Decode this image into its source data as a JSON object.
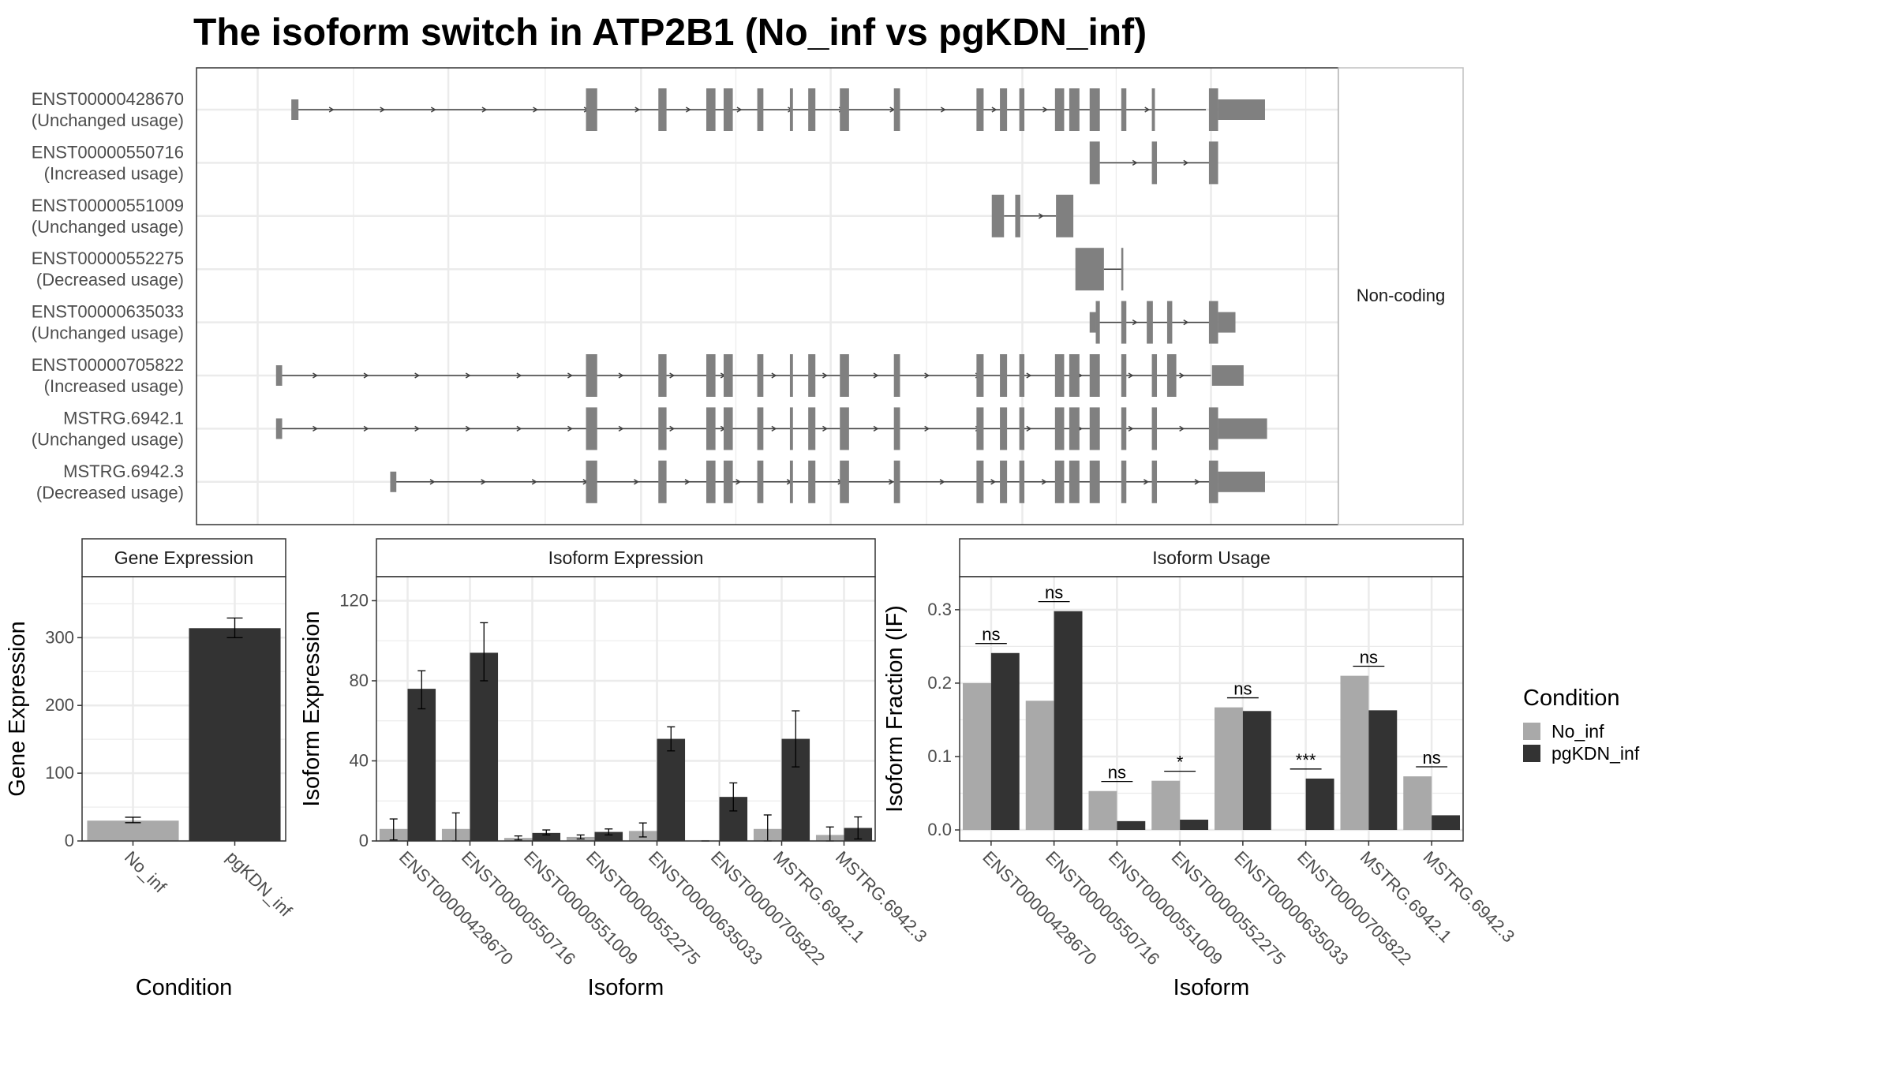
{
  "title": "The isoform switch in ATP2B1 (No_inf vs pgKDN_inf)",
  "colors": {
    "no_inf": "#a9a9a9",
    "pgkdn_inf": "#333333",
    "exon": "#808080",
    "intron": "#404040",
    "grid": "#ebebeb",
    "frame": "#333333"
  },
  "legend": {
    "title": "Condition",
    "items": [
      "No_inf",
      "pgKDN_inf"
    ]
  },
  "chart_data": [
    {
      "type": "table",
      "panel": "transcript-structure",
      "facet_label": "Non-coding",
      "strand": "+",
      "isoforms": [
        {
          "id": "ENST00000428670",
          "status": "(Unchanged usage)",
          "intron_span": [
            96,
            990
          ],
          "start_utr": [
            93,
            100
          ],
          "exons": [
            [
              382,
              393
            ],
            [
              453,
              461
            ],
            [
              500,
              509
            ],
            [
              517,
              526
            ],
            [
              550,
              556
            ],
            [
              582,
              585
            ],
            [
              600,
              607
            ],
            [
              631,
              640
            ],
            [
              684,
              690
            ],
            [
              765,
              772
            ],
            [
              788,
              795
            ],
            [
              807,
              812
            ],
            [
              842,
              851
            ],
            [
              856,
              866
            ],
            [
              876,
              886
            ],
            [
              907,
              912
            ],
            [
              937,
              940
            ],
            [
              993,
              1002
            ]
          ],
          "end_utr": [
            1002,
            1048
          ]
        },
        {
          "id": "ENST00000550716",
          "status": "(Increased usage)",
          "intron_span": [
            884,
            996
          ],
          "start_utr": [
            878,
            884
          ],
          "exons": [
            [
              876,
              886
            ],
            [
              937,
              942
            ],
            [
              993,
              1002
            ]
          ],
          "end_utr": null
        },
        {
          "id": "ENST00000551009",
          "status": "(Unchanged usage)",
          "intron_span": [
            792,
            843
          ],
          "start_utr": null,
          "exons": [
            [
              780,
              792
            ],
            [
              803,
              808
            ],
            [
              843,
              860
            ]
          ],
          "end_utr": null
        },
        {
          "id": "ENST00000552275",
          "status": "(Decreased usage)",
          "intron_span": [
            890,
            909
          ],
          "start_utr": null,
          "exons": [
            [
              862,
              890
            ],
            [
              907,
              909
            ]
          ],
          "end_utr": null
        },
        {
          "id": "ENST00000635033",
          "status": "(Unchanged usage)",
          "intron_span": [
            884,
            996
          ],
          "start_utr": [
            876,
            882
          ],
          "exons": [
            [
              882,
              886
            ],
            [
              907,
              912
            ],
            [
              932,
              938
            ],
            [
              952,
              957
            ],
            [
              993,
              1002
            ]
          ],
          "end_utr": [
            1002,
            1019
          ]
        },
        {
          "id": "ENST00000705822",
          "status": "(Increased usage)",
          "intron_span": [
            80,
            995
          ],
          "start_utr": [
            78,
            84
          ],
          "exons": [
            [
              382,
              393
            ],
            [
              453,
              461
            ],
            [
              500,
              509
            ],
            [
              517,
              526
            ],
            [
              550,
              556
            ],
            [
              582,
              585
            ],
            [
              600,
              607
            ],
            [
              631,
              640
            ],
            [
              684,
              690
            ],
            [
              765,
              772
            ],
            [
              788,
              795
            ],
            [
              807,
              812
            ],
            [
              842,
              851
            ],
            [
              856,
              866
            ],
            [
              876,
              886
            ],
            [
              907,
              912
            ],
            [
              937,
              942
            ],
            [
              952,
              961
            ]
          ],
          "end_utr": [
            996,
            1027
          ]
        },
        {
          "id": "MSTRG.6942.1",
          "status": "(Unchanged usage)",
          "intron_span": [
            80,
            995
          ],
          "start_utr": [
            78,
            84
          ],
          "exons": [
            [
              382,
              393
            ],
            [
              453,
              461
            ],
            [
              500,
              509
            ],
            [
              517,
              526
            ],
            [
              550,
              556
            ],
            [
              582,
              585
            ],
            [
              600,
              607
            ],
            [
              631,
              640
            ],
            [
              684,
              690
            ],
            [
              765,
              772
            ],
            [
              788,
              795
            ],
            [
              807,
              812
            ],
            [
              842,
              851
            ],
            [
              856,
              866
            ],
            [
              876,
              886
            ],
            [
              907,
              912
            ],
            [
              937,
              942
            ],
            [
              993,
              1002
            ]
          ],
          "end_utr": [
            1002,
            1050
          ]
        },
        {
          "id": "MSTRG.6942.3",
          "status": "(Decreased usage)",
          "intron_span": [
            195,
            995
          ],
          "start_utr": [
            190,
            196
          ],
          "exons": [
            [
              382,
              393
            ],
            [
              453,
              461
            ],
            [
              500,
              509
            ],
            [
              517,
              526
            ],
            [
              550,
              556
            ],
            [
              582,
              585
            ],
            [
              600,
              607
            ],
            [
              631,
              640
            ],
            [
              684,
              690
            ],
            [
              765,
              772
            ],
            [
              788,
              795
            ],
            [
              807,
              812
            ],
            [
              842,
              851
            ],
            [
              856,
              866
            ],
            [
              876,
              886
            ],
            [
              907,
              912
            ],
            [
              937,
              942
            ],
            [
              993,
              1002
            ]
          ],
          "end_utr": [
            1002,
            1048
          ]
        }
      ]
    },
    {
      "type": "bar",
      "panel": "gene-expression",
      "strip": "Gene Expression",
      "xlabel": "Condition",
      "ylabel": "Gene Expression",
      "ylim": [
        0,
        390
      ],
      "yticks": [
        0,
        100,
        200,
        300
      ],
      "categories": [
        "No_inf",
        "pgKDN_inf"
      ],
      "values": [
        30,
        314
      ],
      "err_low": [
        27,
        300
      ],
      "err_high": [
        35,
        329
      ]
    },
    {
      "type": "bar",
      "panel": "isoform-expression",
      "strip": "Isoform Expression",
      "xlabel": "Isoform",
      "ylabel": "Isoform Expression",
      "ylim": [
        0,
        132
      ],
      "yticks": [
        0,
        40,
        80,
        120
      ],
      "categories": [
        "ENST00000428670",
        "ENST00000550716",
        "ENST00000551009",
        "ENST00000552275",
        "ENST00000635033",
        "ENST00000705822",
        "MSTRG.6942.1",
        "MSTRG.6942.3"
      ],
      "series": [
        {
          "name": "No_inf",
          "values": [
            6,
            6,
            1.5,
            2,
            5,
            0,
            6,
            3
          ],
          "err_low": [
            0.5,
            0,
            0.5,
            1,
            2,
            0,
            0,
            0
          ],
          "err_high": [
            11,
            14,
            2.5,
            3,
            9,
            0,
            13,
            7
          ]
        },
        {
          "name": "pgKDN_inf",
          "values": [
            76,
            94,
            4,
            4.5,
            51,
            22,
            51,
            6.5
          ],
          "err_low": [
            66,
            80,
            3,
            3,
            45,
            15,
            37,
            1
          ],
          "err_high": [
            85,
            109,
            5.5,
            6,
            57,
            29,
            65,
            12
          ]
        }
      ]
    },
    {
      "type": "bar",
      "panel": "isoform-usage",
      "strip": "Isoform Usage",
      "xlabel": "Isoform",
      "ylabel": "Isoform Fraction (IF)",
      "ylim": [
        -0.015,
        0.345
      ],
      "yticks": [
        0.0,
        0.1,
        0.2,
        0.3
      ],
      "ytick_labels": [
        "0.0",
        "0.1",
        "0.2",
        "0.3"
      ],
      "categories": [
        "ENST00000428670",
        "ENST00000550716",
        "ENST00000551009",
        "ENST00000552275",
        "ENST00000635033",
        "ENST00000705822",
        "MSTRG.6942.1",
        "MSTRG.6942.3"
      ],
      "series": [
        {
          "name": "No_inf",
          "values": [
            0.2,
            0.176,
            0.053,
            0.067,
            0.167,
            0.0,
            0.21,
            0.073
          ]
        },
        {
          "name": "pgKDN_inf",
          "values": [
            0.241,
            0.298,
            0.012,
            0.014,
            0.162,
            0.07,
            0.163,
            0.02
          ]
        }
      ],
      "significance": [
        "ns",
        "ns",
        "ns",
        "*",
        "ns",
        "***",
        "ns",
        "ns"
      ]
    }
  ]
}
